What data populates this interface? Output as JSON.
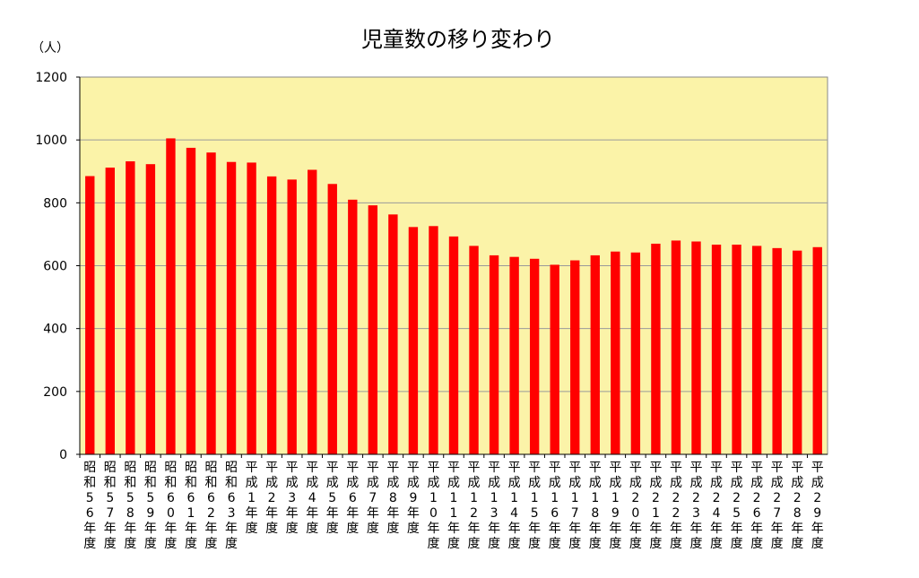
{
  "chart_data": {
    "type": "bar",
    "title": "児童数の移り変わり",
    "unit_label": "（人）",
    "xlabel": "",
    "ylabel": "",
    "ylim": [
      0,
      1200
    ],
    "yticks": [
      0,
      200,
      400,
      600,
      800,
      1000,
      1200
    ],
    "grid": true,
    "legend": "none",
    "colors": {
      "bar": "#ff0000",
      "plot_bg": "#fbf3a8",
      "grid": "#9a9a9a",
      "axis": "#000000"
    },
    "categories": [
      "昭和56年度",
      "昭和57年度",
      "昭和58年度",
      "昭和59年度",
      "昭和60年度",
      "昭和61年度",
      "昭和62年度",
      "昭和63年度",
      "平成1年度",
      "平成2年度",
      "平成3年度",
      "平成4年度",
      "平成5年度",
      "平成6年度",
      "平成7年度",
      "平成8年度",
      "平成9年度",
      "平成10年度",
      "平成11年度",
      "平成12年度",
      "平成13年度",
      "平成14年度",
      "平成15年度",
      "平成16年度",
      "平成17年度",
      "平成18年度",
      "平成19年度",
      "平成20年度",
      "平成21年度",
      "平成22年度",
      "平成23年度",
      "平成24年度",
      "平成25年度",
      "平成26年度",
      "平成27年度",
      "平成28年度",
      "平成29年度"
    ],
    "values": [
      885,
      912,
      932,
      923,
      1005,
      975,
      960,
      930,
      928,
      884,
      874,
      905,
      860,
      810,
      792,
      763,
      723,
      726,
      693,
      663,
      633,
      628,
      622,
      603,
      617,
      633,
      645,
      642,
      670,
      680,
      677,
      667,
      667,
      663,
      656,
      648,
      659
    ]
  }
}
